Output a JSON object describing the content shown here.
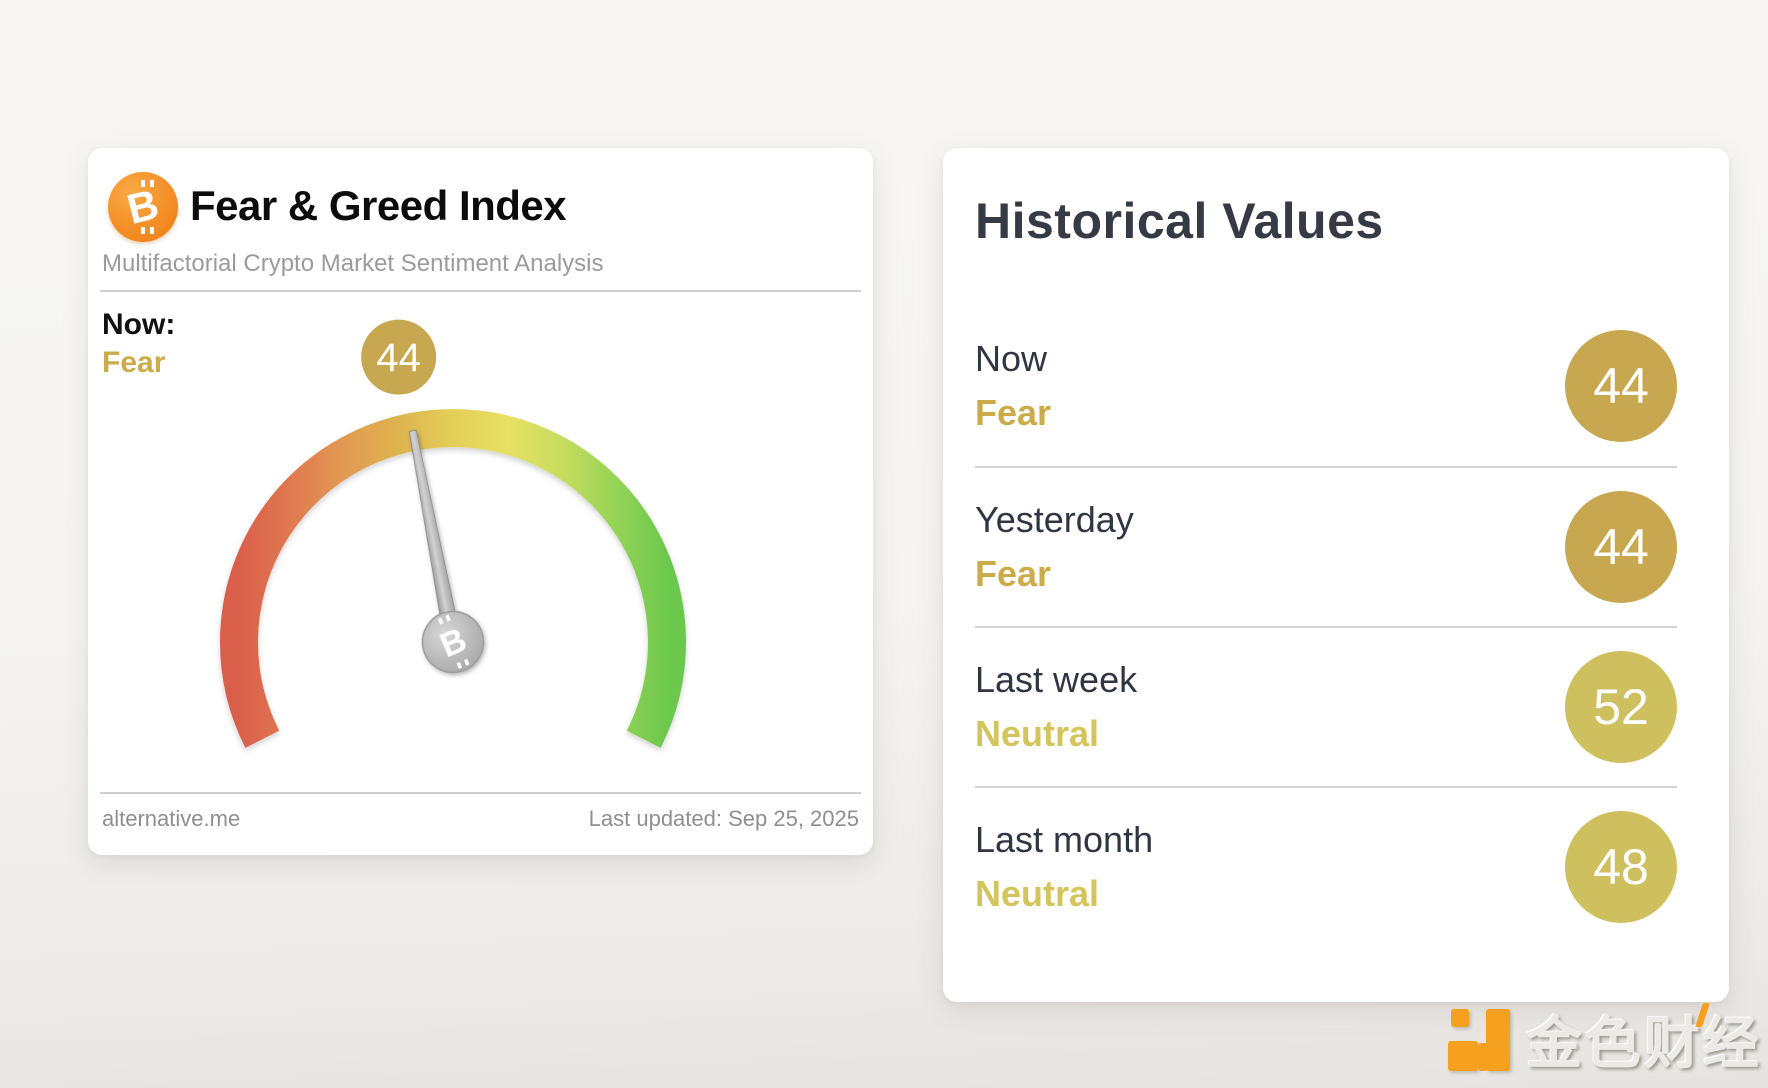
{
  "fear_greed_card": {
    "title": "Fear & Greed Index",
    "subtitle": "Multifactorial Crypto Market Sentiment Analysis",
    "now_label": "Now:",
    "now_classification": "Fear",
    "gauge": {
      "type": "gauge",
      "value": 44,
      "min": 0,
      "max": 100,
      "classification": "Fear"
    },
    "footer": {
      "source": "alternative.me",
      "last_updated": "Last updated: Sep 25, 2025"
    }
  },
  "historical_card": {
    "title": "Historical Values",
    "rows": [
      {
        "label": "Now",
        "classification": "Fear",
        "value": 44,
        "type": "fear"
      },
      {
        "label": "Yesterday",
        "classification": "Fear",
        "value": 44,
        "type": "fear"
      },
      {
        "label": "Last week",
        "classification": "Neutral",
        "value": 52,
        "type": "neutral"
      },
      {
        "label": "Last month",
        "classification": "Neutral",
        "value": 48,
        "type": "neutral"
      }
    ]
  },
  "watermark": {
    "brand_text": "金色财经"
  },
  "icons": {
    "header_icon": "bitcoin-icon",
    "needle_hub_icon": "bitcoin-icon",
    "watermark_icon": "jinse-finance-logo-icon"
  },
  "colors": {
    "bitcoin_orange": "#f7931a",
    "fear_badge": "#c7a851",
    "neutral_badge": "#cec05f",
    "fear_text": "#cbac49",
    "neutral_text": "#d3c45b",
    "watermark_orange": "#f5a11f",
    "gauge_gradient": [
      "#d95f4c",
      "#e07a50",
      "#e29b52",
      "#ddb44f",
      "#e3cf58",
      "#e7e063",
      "#c8dd5f",
      "#97d457",
      "#6cc84e"
    ]
  }
}
